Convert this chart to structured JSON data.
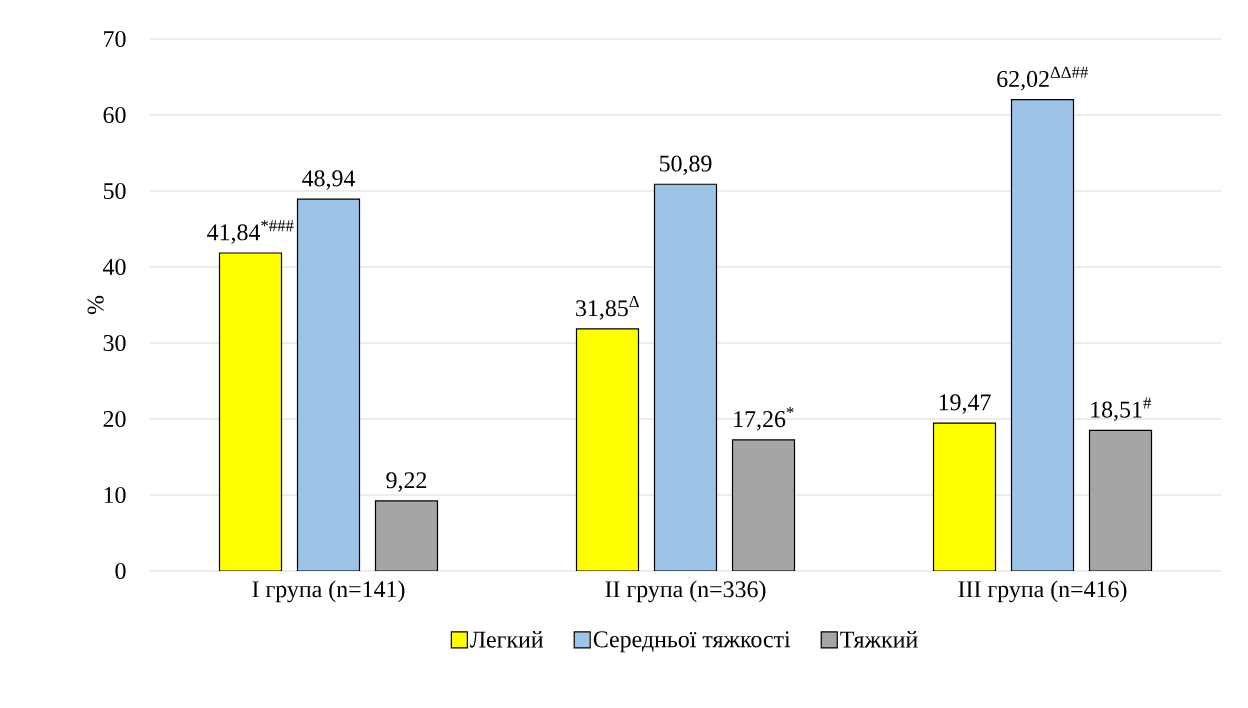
{
  "chart_data": {
    "type": "bar",
    "ylabel": "%",
    "categories": [
      "I група (n=141)",
      "II група (n=336)",
      "III група (n=416)"
    ],
    "series": [
      {
        "name": "Легкий",
        "color": "#ffff00",
        "values": [
          41.84,
          31.85,
          19.47
        ],
        "value_labels": [
          "41,84$^{*###}$",
          "31,85$^{Δ}$",
          "19,47"
        ]
      },
      {
        "name": "Середньої тяжкості",
        "color": "#9dc3e6",
        "values": [
          48.94,
          50.89,
          62.02
        ],
        "value_labels": [
          "48,94",
          "50,89",
          "62,02$^{ΔΔ##}$"
        ]
      },
      {
        "name": "Тяжкий",
        "color": "#a5a5a5",
        "values": [
          9.22,
          17.26,
          18.51
        ],
        "value_labels": [
          "9,22",
          "17,26$^{*}$",
          "18,51$^{#}$"
        ]
      }
    ],
    "ylim": [
      0,
      70
    ],
    "yticks": [
      0,
      10,
      20,
      30,
      40,
      50,
      60,
      70
    ],
    "grid": "y",
    "legend": "bottom"
  }
}
